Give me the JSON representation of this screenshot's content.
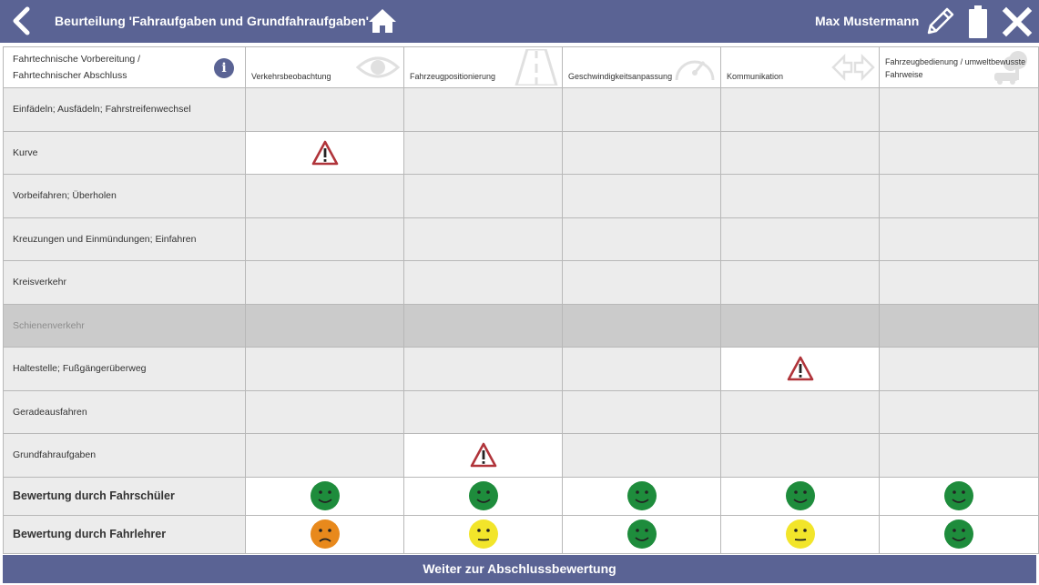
{
  "header": {
    "title": "Beurteilung 'Fahraufgaben und Grundfahraufgaben'",
    "user": "Max Mustermann"
  },
  "table": {
    "corner_header": "Fahrtechnische Vorbereitung / Fahrtechnischer Abschluss",
    "columns": [
      {
        "label": "Verkehrsbeobachtung",
        "icon": "eye-icon"
      },
      {
        "label": "Fahrzeugpositionierung",
        "icon": "road-icon"
      },
      {
        "label": "Geschwindigkeitsanpassung",
        "icon": "speedometer-icon"
      },
      {
        "label": "Kommunikation",
        "icon": "arrows-icon"
      },
      {
        "label": "Fahrzeugbedienung / umweltbewusste Fahrweise",
        "icon": "car-tree-icon"
      }
    ],
    "rows": [
      {
        "label": "Einfädeln; Ausfädeln; Fahrstreifenwechsel",
        "cells": [
          "",
          "",
          "",
          "",
          ""
        ]
      },
      {
        "label": "Kurve",
        "cells": [
          "warning",
          "",
          "",
          "",
          ""
        ]
      },
      {
        "label": "Vorbeifahren; Überholen",
        "cells": [
          "",
          "",
          "",
          "",
          ""
        ]
      },
      {
        "label": "Kreuzungen und Einmündungen; Einfahren",
        "cells": [
          "",
          "",
          "",
          "",
          ""
        ]
      },
      {
        "label": "Kreisverkehr",
        "cells": [
          "",
          "",
          "",
          "",
          ""
        ]
      },
      {
        "label": "Schienenverkehr",
        "cells": [
          "",
          "",
          "",
          "",
          ""
        ],
        "disabled": true
      },
      {
        "label": "Haltestelle; Fußgängerüberweg",
        "cells": [
          "",
          "",
          "",
          "warning",
          ""
        ]
      },
      {
        "label": "Geradeausfahren",
        "cells": [
          "",
          "",
          "",
          "",
          ""
        ]
      },
      {
        "label": "Grundfahraufgaben",
        "cells": [
          "",
          "warning",
          "",
          "",
          ""
        ]
      }
    ],
    "ratings": [
      {
        "label": "Bewertung durch Fahrschüler",
        "values": [
          "good",
          "good",
          "good",
          "good",
          "good"
        ]
      },
      {
        "label": "Bewertung durch Fahrlehrer",
        "values": [
          "poor",
          "neutral",
          "good",
          "neutral",
          "good"
        ]
      }
    ]
  },
  "colors": {
    "brand": "#5a6394",
    "good": "#1e8c3c",
    "neutral": "#f2e52a",
    "poor": "#e8891c",
    "warning": "#b0343a"
  },
  "footer": {
    "button_label": "Weiter zur Abschlussbewertung"
  }
}
